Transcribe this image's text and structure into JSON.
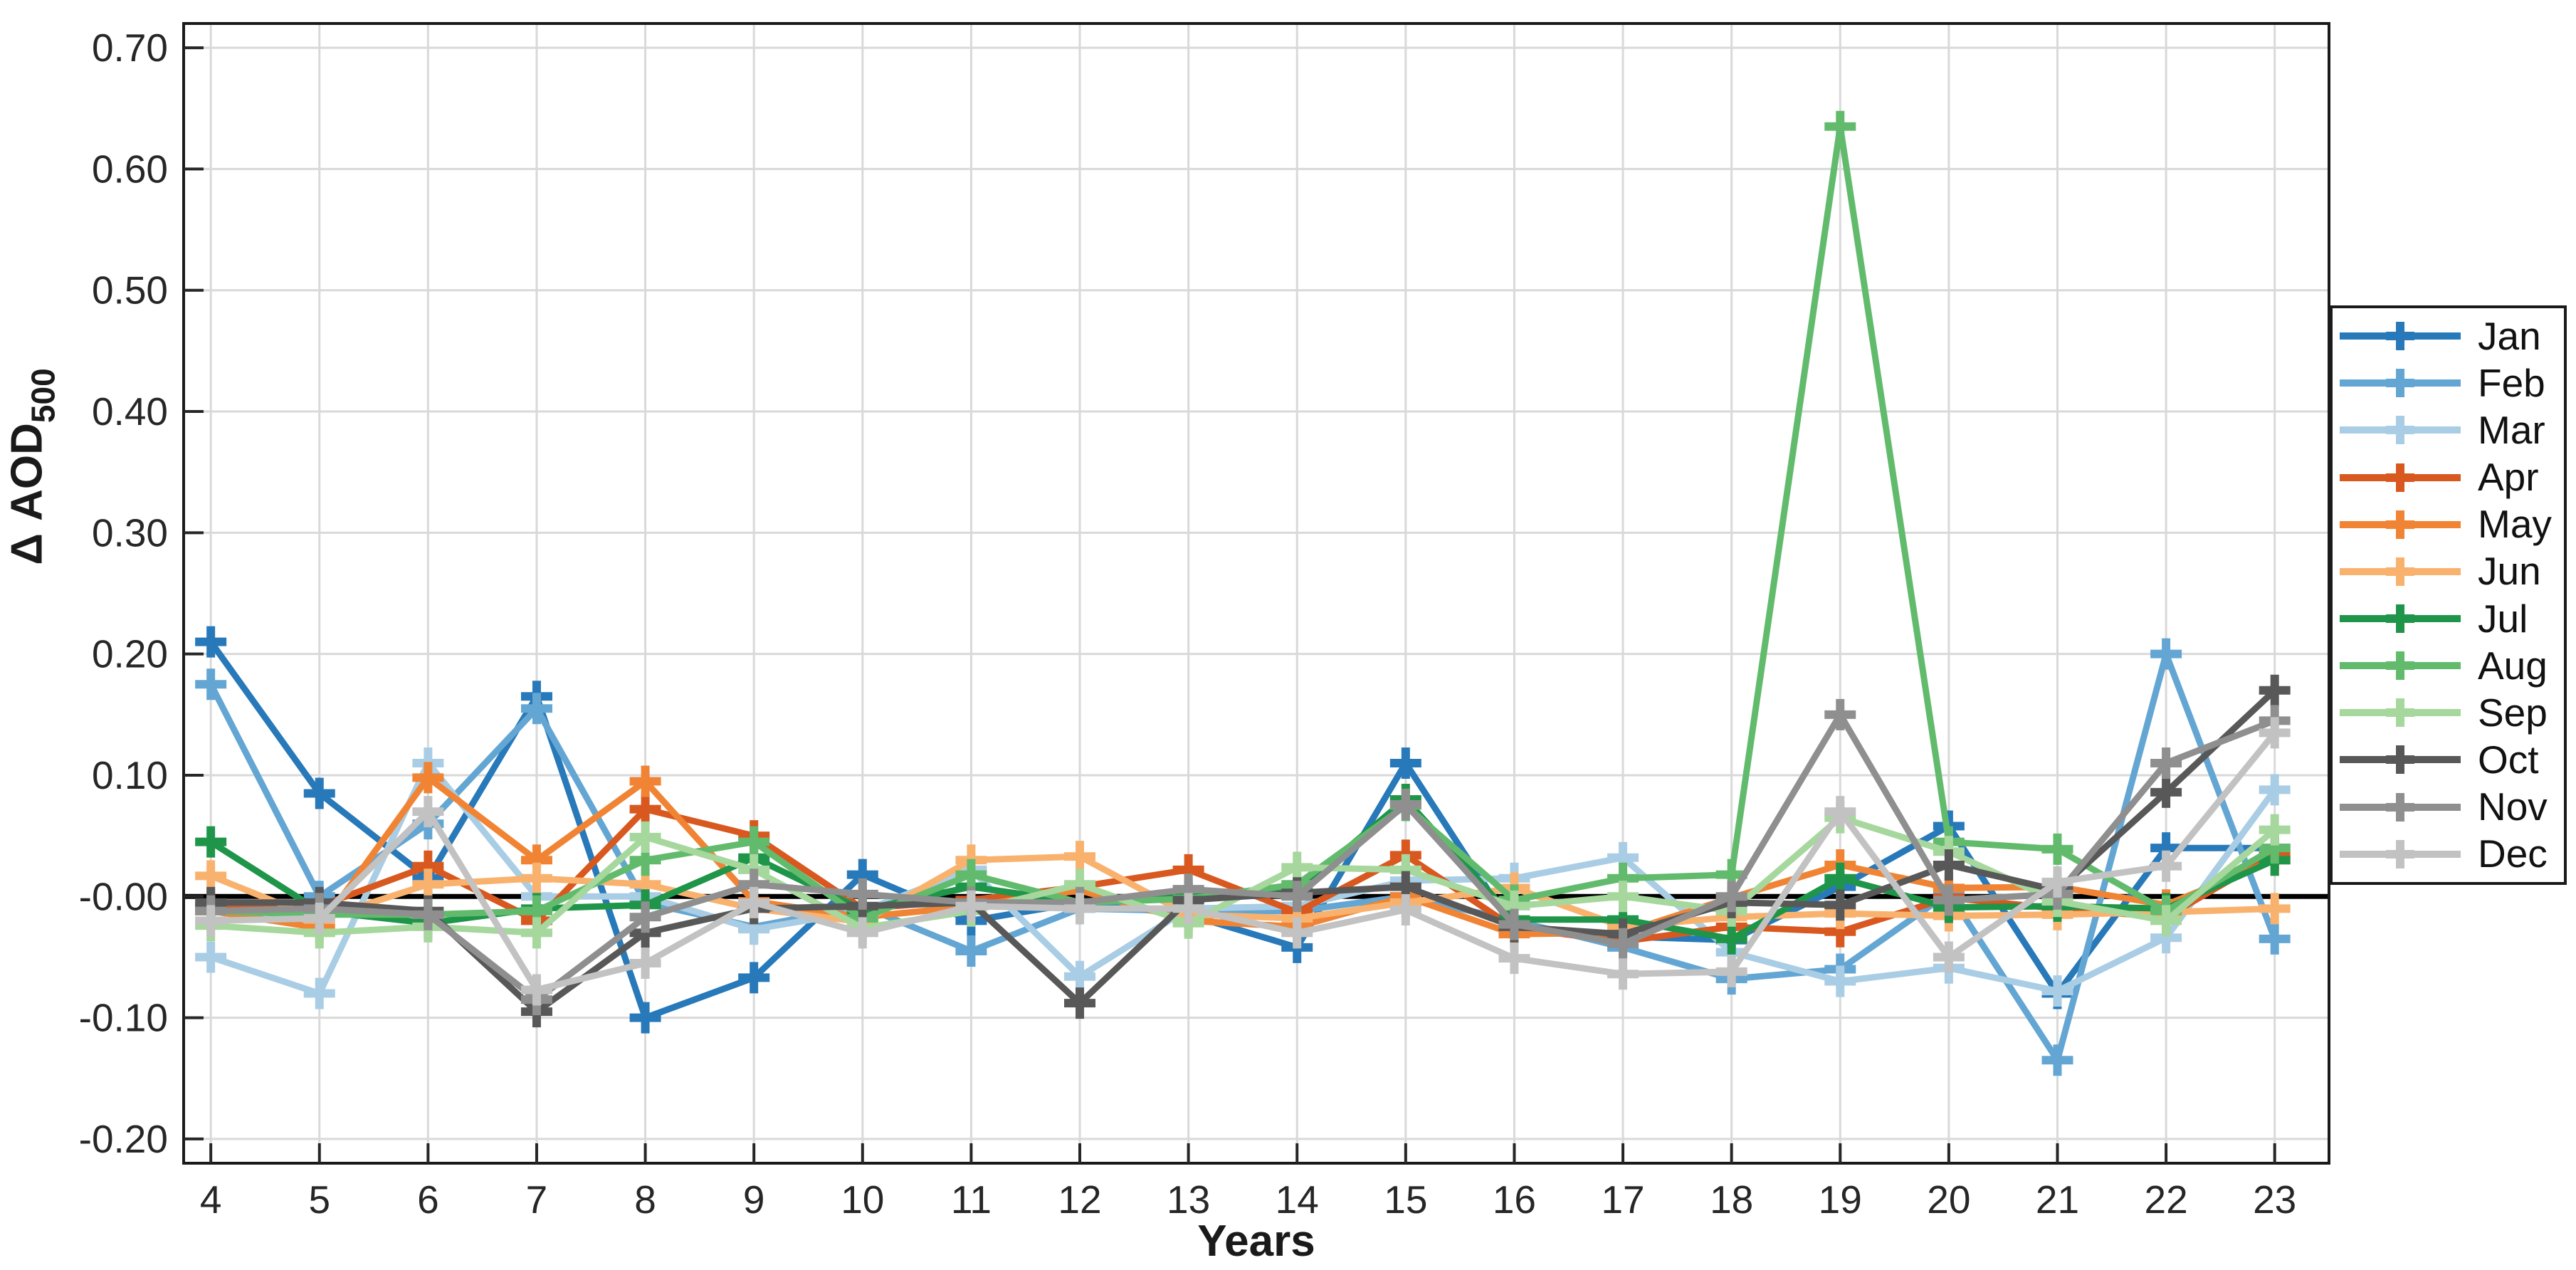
{
  "chart_data": {
    "type": "line",
    "title": "",
    "xlabel": "Years",
    "ylabel": "Δ AOD",
    "ylabel_subscript": "500",
    "x": [
      4,
      5,
      6,
      7,
      8,
      9,
      10,
      11,
      12,
      13,
      14,
      15,
      16,
      17,
      18,
      19,
      20,
      21,
      22,
      23
    ],
    "x_tick_labels": [
      "4",
      "5",
      "6",
      "7",
      "8",
      "9",
      "10",
      "11",
      "12",
      "13",
      "14",
      "15",
      "16",
      "17",
      "18",
      "19",
      "20",
      "21",
      "22",
      "23"
    ],
    "y_ticks": [
      0.7,
      0.6,
      0.5,
      0.4,
      0.3,
      0.2,
      0.1,
      0.0,
      -0.1,
      -0.2
    ],
    "y_tick_labels": [
      "0.70",
      "0.60",
      "0.50",
      "0.40",
      "0.30",
      "0.20",
      "0.10",
      "-0.00",
      "-0.10",
      "-0.20"
    ],
    "xlim": [
      4,
      23
    ],
    "ylim": [
      -0.2,
      0.7
    ],
    "grid": true,
    "zero_line": true,
    "legend_position": "right-outside",
    "axis_color": "#262626",
    "grid_color": "#d9d9d9",
    "zero_line_color": "#000000",
    "marker": "plus",
    "series": [
      {
        "name": "Jan",
        "color": "#2879B9",
        "values": [
          0.21,
          0.085,
          0.015,
          0.165,
          -0.1,
          -0.067,
          0.018,
          -0.02,
          -0.005,
          -0.015,
          -0.042,
          0.11,
          -0.028,
          -0.033,
          -0.036,
          0.008,
          0.058,
          -0.08,
          0.04,
          0.04
        ]
      },
      {
        "name": "Feb",
        "color": "#64A6D3",
        "values": [
          0.175,
          0.0,
          0.06,
          0.155,
          -0.005,
          -0.025,
          -0.008,
          -0.045,
          -0.01,
          -0.012,
          -0.012,
          0.0,
          -0.02,
          -0.042,
          -0.068,
          -0.06,
          0.003,
          -0.135,
          0.2,
          -0.035
        ]
      },
      {
        "name": "Mar",
        "color": "#A9CDE4",
        "values": [
          -0.05,
          -0.08,
          0.11,
          0.0,
          0.0,
          -0.027,
          -0.012,
          0.022,
          -0.066,
          -0.01,
          -0.008,
          0.013,
          0.015,
          0.032,
          -0.046,
          -0.07,
          -0.059,
          -0.078,
          -0.034,
          0.088
        ]
      },
      {
        "name": "Apr",
        "color": "#D8581F",
        "values": [
          -0.008,
          -0.008,
          0.025,
          -0.02,
          0.072,
          0.05,
          -0.01,
          -0.003,
          0.008,
          0.022,
          -0.013,
          0.034,
          -0.026,
          -0.037,
          -0.025,
          -0.029,
          -0.001,
          -0.01,
          -0.017,
          0.035
        ]
      },
      {
        "name": "May",
        "color": "#F08434",
        "values": [
          -0.012,
          -0.026,
          0.098,
          0.03,
          0.095,
          -0.004,
          -0.017,
          -0.008,
          0.005,
          -0.02,
          -0.025,
          0.0,
          -0.031,
          -0.03,
          -0.001,
          0.026,
          0.007,
          0.008,
          -0.007,
          0.03
        ]
      },
      {
        "name": "Jun",
        "color": "#F9B26E",
        "values": [
          0.017,
          -0.019,
          0.01,
          0.015,
          0.01,
          -0.01,
          -0.021,
          0.03,
          0.033,
          -0.015,
          -0.018,
          -0.005,
          0.007,
          -0.025,
          -0.017,
          -0.014,
          -0.016,
          -0.015,
          -0.013,
          -0.01
        ]
      },
      {
        "name": "Jul",
        "color": "#1F9549",
        "values": [
          0.045,
          -0.012,
          -0.022,
          -0.01,
          -0.007,
          0.032,
          -0.011,
          0.008,
          -0.005,
          0.0,
          0.005,
          0.08,
          -0.019,
          -0.019,
          -0.035,
          0.015,
          -0.009,
          -0.008,
          -0.01,
          0.03
        ]
      },
      {
        "name": "Aug",
        "color": "#62BB6C",
        "values": [
          -0.012,
          -0.015,
          -0.015,
          -0.012,
          0.03,
          0.045,
          -0.018,
          0.018,
          -0.005,
          -0.002,
          0.01,
          0.075,
          -0.003,
          0.015,
          0.018,
          0.635,
          0.045,
          0.039,
          -0.012,
          0.04
        ]
      },
      {
        "name": "Sep",
        "color": "#A6D79D",
        "values": [
          -0.024,
          -0.03,
          -0.025,
          -0.03,
          0.049,
          0.022,
          -0.026,
          -0.012,
          0.01,
          -0.022,
          0.024,
          0.022,
          -0.008,
          0.0,
          -0.012,
          0.065,
          0.037,
          -0.004,
          -0.02,
          0.055
        ]
      },
      {
        "name": "Oct",
        "color": "#585858",
        "values": [
          -0.005,
          -0.005,
          -0.012,
          -0.095,
          -0.03,
          -0.01,
          -0.008,
          -0.005,
          -0.088,
          -0.003,
          0.003,
          0.008,
          -0.025,
          -0.031,
          -0.005,
          -0.007,
          0.026,
          0.005,
          0.086,
          0.17
        ]
      },
      {
        "name": "Nov",
        "color": "#8F8F8F",
        "values": [
          -0.012,
          -0.01,
          -0.015,
          -0.085,
          -0.017,
          0.01,
          0.002,
          -0.005,
          -0.005,
          0.006,
          0.0,
          0.076,
          -0.023,
          -0.039,
          0.0,
          0.15,
          -0.003,
          0.002,
          0.11,
          0.145
        ]
      },
      {
        "name": "Dec",
        "color": "#C2C2C2",
        "values": [
          -0.02,
          -0.018,
          0.07,
          -0.077,
          -0.055,
          -0.005,
          -0.03,
          -0.008,
          -0.01,
          -0.01,
          -0.03,
          -0.011,
          -0.051,
          -0.064,
          -0.062,
          0.07,
          -0.05,
          0.012,
          0.025,
          0.135
        ]
      }
    ]
  }
}
